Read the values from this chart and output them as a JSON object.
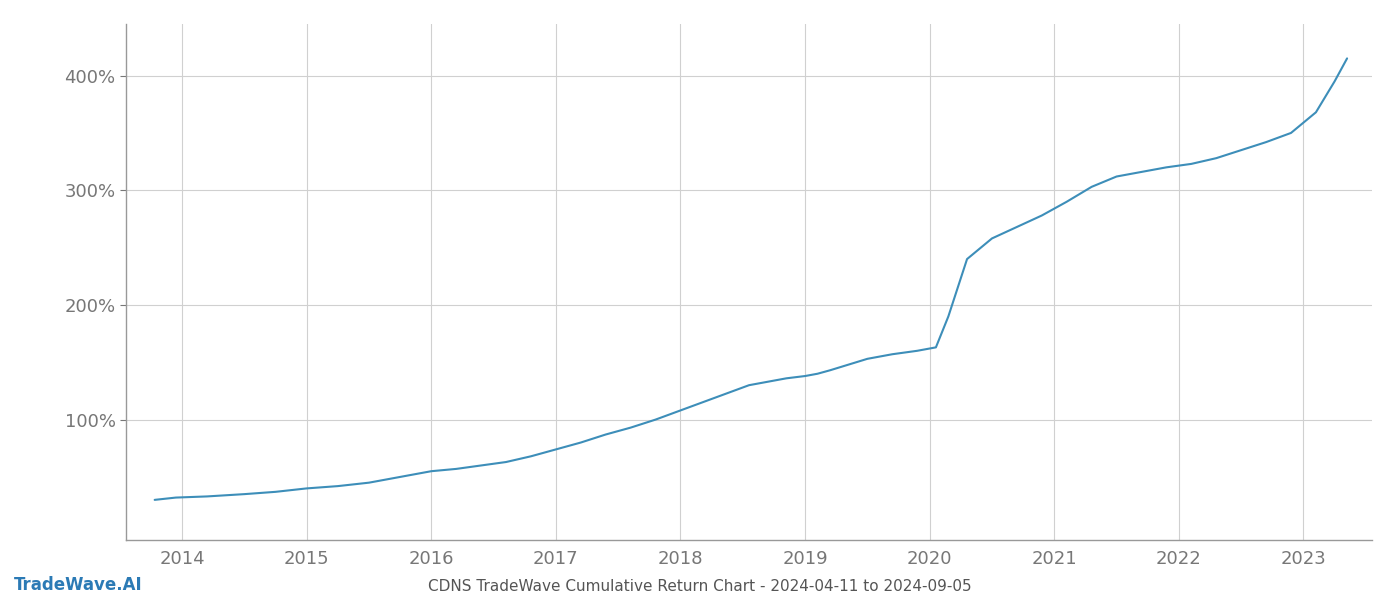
{
  "title": "CDNS TradeWave Cumulative Return Chart - 2024-04-11 to 2024-09-05",
  "watermark": "TradeWave.AI",
  "line_color": "#3d8eb9",
  "background_color": "#ffffff",
  "grid_color": "#d0d0d0",
  "x_years": [
    2014,
    2015,
    2016,
    2017,
    2018,
    2019,
    2020,
    2021,
    2022,
    2023
  ],
  "y_ticks": [
    100,
    200,
    300,
    400
  ],
  "xlim": [
    2013.55,
    2023.55
  ],
  "ylim": [
    -5,
    445
  ],
  "data_x": [
    2013.78,
    2013.95,
    2014.2,
    2014.5,
    2014.75,
    2015.0,
    2015.25,
    2015.5,
    2015.75,
    2016.0,
    2016.2,
    2016.4,
    2016.6,
    2016.8,
    2017.0,
    2017.2,
    2017.4,
    2017.6,
    2017.8,
    2018.0,
    2018.2,
    2018.4,
    2018.55,
    2018.7,
    2018.85,
    2019.0,
    2019.1,
    2019.2,
    2019.35,
    2019.5,
    2019.7,
    2019.9,
    2020.05,
    2020.15,
    2020.3,
    2020.5,
    2020.7,
    2020.9,
    2021.1,
    2021.3,
    2021.5,
    2021.7,
    2021.9,
    2022.1,
    2022.3,
    2022.5,
    2022.7,
    2022.9,
    2023.1,
    2023.25,
    2023.35
  ],
  "data_y": [
    30,
    32,
    33,
    35,
    37,
    40,
    42,
    45,
    50,
    55,
    57,
    60,
    63,
    68,
    74,
    80,
    87,
    93,
    100,
    108,
    116,
    124,
    130,
    133,
    136,
    138,
    140,
    143,
    148,
    153,
    157,
    160,
    163,
    190,
    240,
    258,
    268,
    278,
    290,
    303,
    312,
    316,
    320,
    323,
    328,
    335,
    342,
    350,
    368,
    395,
    415
  ]
}
